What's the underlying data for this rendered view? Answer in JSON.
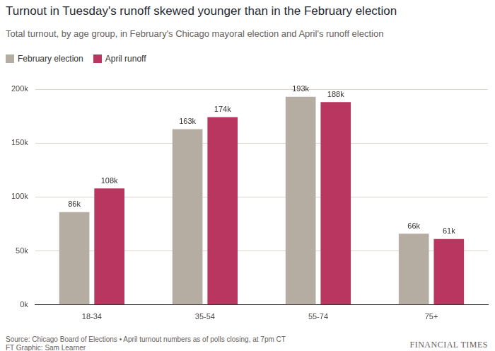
{
  "chart_data": {
    "type": "bar",
    "title": "Turnout in Tuesday's runoff skewed younger than in the February election",
    "subtitle": "Total turnout, by age group, in February's Chicago mayoral election and April's runoff election",
    "categories": [
      "18-34",
      "35-54",
      "55-74",
      "75+"
    ],
    "series": [
      {
        "name": "February election",
        "color": "#b5aca2",
        "values": [
          86000,
          163000,
          193000,
          66000
        ],
        "value_labels": [
          "86k",
          "163k",
          "193k",
          "66k"
        ]
      },
      {
        "name": "April runoff",
        "color": "#b8365f",
        "values": [
          108000,
          174000,
          188000,
          61000
        ],
        "value_labels": [
          "108k",
          "174k",
          "188k",
          "61k"
        ]
      }
    ],
    "ylim": [
      0,
      200000
    ],
    "yticks": [
      {
        "value": 0,
        "label": "0k"
      },
      {
        "value": 50000,
        "label": "50k"
      },
      {
        "value": 100000,
        "label": "100k"
      },
      {
        "value": 150000,
        "label": "150k"
      },
      {
        "value": 200000,
        "label": "200k"
      }
    ],
    "grid": true,
    "legend": "top-left",
    "data_labels": true,
    "source": "Source: Chicago Board of Elections • April turnout numbers as of polls closing, at 7pm CT",
    "credit": "FT Graphic: Sam Learner",
    "brand": "FINANCIAL TIMES"
  }
}
